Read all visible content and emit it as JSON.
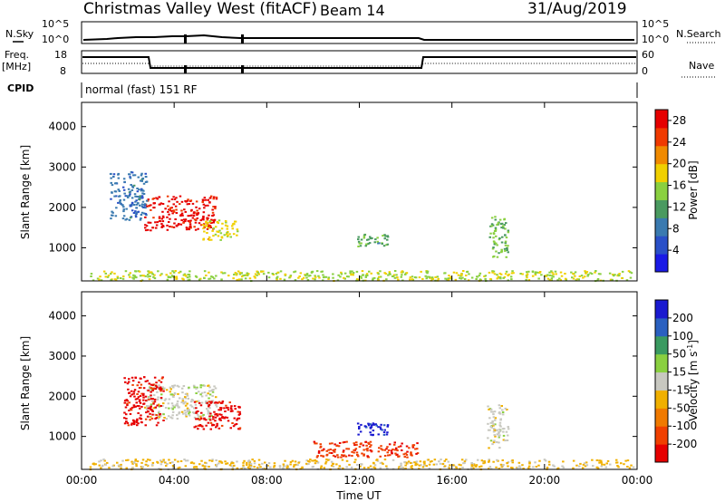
{
  "header": {
    "title": "Christmas Valley West (fitACF)",
    "beam": "Beam 14",
    "date": "31/Aug/2019"
  },
  "panels": {
    "nsky": {
      "label": "N.Sky",
      "right_label": "N.Search",
      "ticks_left": [
        "10^5",
        "10^0"
      ],
      "ticks_right": [
        "10^5",
        "10^0"
      ]
    },
    "freq": {
      "label_line1": "Freq.",
      "label_line2": "[MHz]",
      "right_label": "Nave",
      "ticks_left": [
        "18",
        "8"
      ],
      "ticks_right": [
        "60",
        "0"
      ]
    },
    "cpid": {
      "label": "CPID",
      "value": "normal (fast) 151 RF"
    }
  },
  "colors": {
    "power_scale": [
      "#1a1ae6",
      "#2a50c8",
      "#3a7ab0",
      "#4a9a60",
      "#8ad040",
      "#f0d000",
      "#f08a00",
      "#f03a00",
      "#e60000"
    ],
    "velocity_scale": [
      "#e60000",
      "#f04000",
      "#f07a00",
      "#f0b000",
      "#c8c8c0",
      "#8ad040",
      "#3a9a60",
      "#2a60c0",
      "#1a1ad0"
    ]
  },
  "chart_data": [
    {
      "type": "heatmap",
      "title": "Power",
      "xlabel": "",
      "ylabel": "Slant Range [km]",
      "x_ticks": [
        "00:00",
        "04:00",
        "08:00",
        "12:00",
        "16:00",
        "20:00",
        "00:00"
      ],
      "xlim_hours": [
        0,
        24
      ],
      "y_ticks": [
        "1000",
        "2000",
        "3000",
        "4000"
      ],
      "ylim_km": [
        180,
        4600
      ],
      "colorbar": {
        "label": "Power [dB]",
        "ticks": [
          "4",
          "8",
          "12",
          "16",
          "20",
          "24",
          "28"
        ],
        "range": [
          0,
          30
        ]
      },
      "features": [
        {
          "t0": 2.7,
          "t1": 5.8,
          "r0": 1450,
          "r1": 2300,
          "value": 28
        },
        {
          "t0": 5.2,
          "t1": 6.7,
          "r0": 1200,
          "r1": 1700,
          "value": 18
        },
        {
          "t0": 1.2,
          "t1": 2.8,
          "r0": 1700,
          "r1": 2900,
          "value": 8
        },
        {
          "t0": 11.9,
          "t1": 13.2,
          "r0": 1050,
          "r1": 1350,
          "value": 12
        },
        {
          "t0": 17.6,
          "t1": 18.4,
          "r0": 750,
          "r1": 1800,
          "value": 14
        },
        {
          "t0": 0.3,
          "t1": 23.8,
          "r0": 200,
          "r1": 450,
          "value": 16
        }
      ]
    },
    {
      "type": "heatmap",
      "title": "Velocity",
      "xlabel": "Time UT",
      "ylabel": "Slant Range [km]",
      "x_ticks": [
        "00:00",
        "04:00",
        "08:00",
        "12:00",
        "16:00",
        "20:00",
        "00:00"
      ],
      "xlim_hours": [
        0,
        24
      ],
      "y_ticks": [
        "1000",
        "2000",
        "3000",
        "4000"
      ],
      "ylim_km": [
        180,
        4600
      ],
      "colorbar": {
        "label": "Velocity [m s^-1]",
        "ticks": [
          "200",
          "100",
          "50",
          "15",
          "-15",
          "-50",
          "-100",
          "-200"
        ],
        "range": [
          -250,
          250
        ]
      },
      "features": [
        {
          "t0": 2.7,
          "t1": 5.8,
          "r0": 1450,
          "r1": 2300,
          "value": 0
        },
        {
          "t0": 1.8,
          "t1": 3.5,
          "r0": 1300,
          "r1": 2500,
          "value": -220
        },
        {
          "t0": 4.8,
          "t1": 6.8,
          "r0": 1200,
          "r1": 1900,
          "value": -220
        },
        {
          "t0": 11.9,
          "t1": 13.2,
          "r0": 1050,
          "r1": 1350,
          "value": 220
        },
        {
          "t0": 17.5,
          "t1": 18.4,
          "r0": 700,
          "r1": 1800,
          "value": 0
        },
        {
          "t0": 10.0,
          "t1": 14.5,
          "r0": 500,
          "r1": 900,
          "value": -180
        },
        {
          "t0": 0.3,
          "t1": 23.8,
          "r0": 200,
          "r1": 450,
          "value": -40
        }
      ]
    }
  ]
}
